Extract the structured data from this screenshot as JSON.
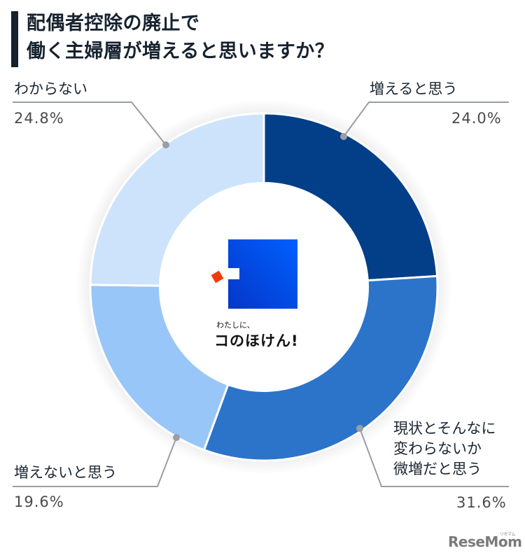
{
  "title": {
    "line1": "配偶者控除の廃止で",
    "line2": "働く主婦層が増えると思いますか？"
  },
  "chart_data": {
    "type": "pie",
    "subtype": "donut",
    "title": "配偶者控除の廃止で働く主婦層が増えると思いますか？",
    "start_angle": "12 o'clock",
    "direction": "clockwise",
    "categories": [
      "増えると思う",
      "現状とそんなに変わらないか微増だと思う",
      "増えないと思う",
      "わからない"
    ],
    "values": [
      24.0,
      31.6,
      19.6,
      24.8
    ],
    "unit": "%",
    "colors": [
      "#023f88",
      "#2b74c9",
      "#99c6f8",
      "#cce3fb"
    ],
    "legend": "none (callout labels)"
  },
  "labels": {
    "increase": {
      "text": "増えると思う",
      "pct": "24.0%"
    },
    "same": {
      "line1": "現状とそんなに",
      "line2": "変わらないか",
      "line3": "微増だと思う",
      "pct": "31.6%"
    },
    "no_increase": {
      "text": "増えないと思う",
      "pct": "19.6%"
    },
    "unknown": {
      "text": "わからない",
      "pct": "24.8%"
    }
  },
  "center_logo": {
    "tagline": "わたしに、",
    "name": "コのほけん!",
    "square_color": "#0a48e0",
    "accent_color": "#f03c0a"
  },
  "watermark": {
    "text": "ReseMom",
    "kana": "リセマム"
  }
}
